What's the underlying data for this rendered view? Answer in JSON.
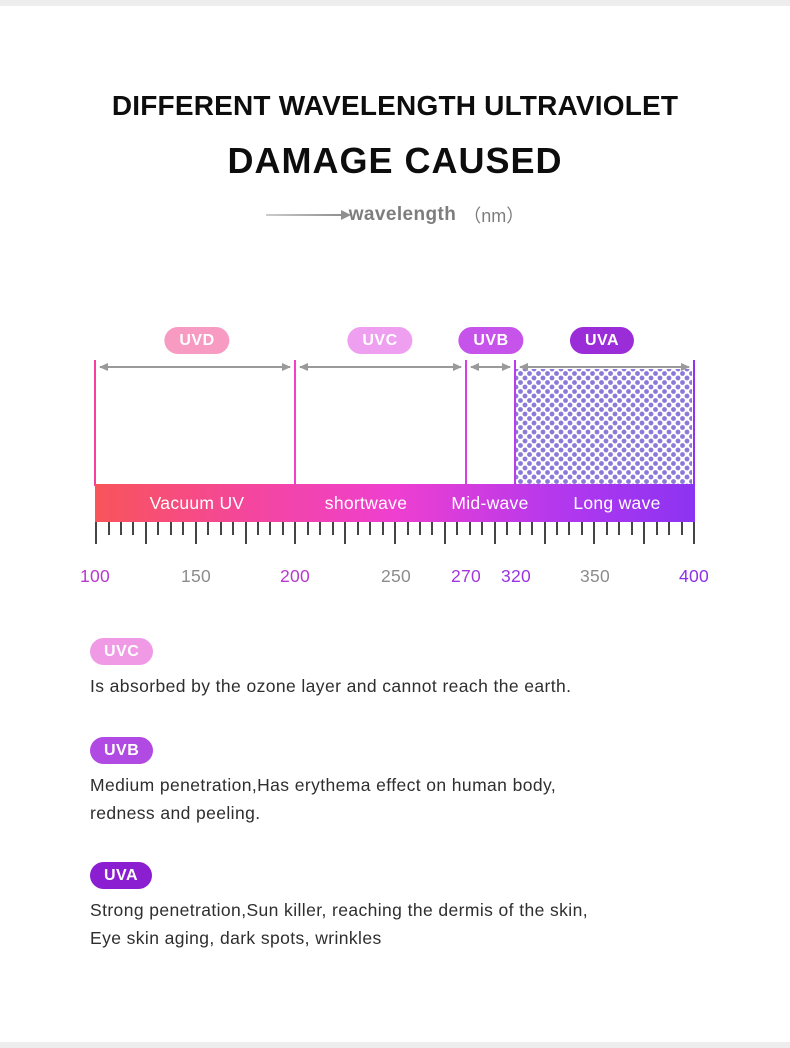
{
  "header": {
    "title": "DIFFERENT WAVELENGTH ULTRAVIOLET",
    "subtitle": "DAMAGE CAUSED",
    "axis_label": "wavelength",
    "axis_unit": "（nm）"
  },
  "bands": [
    {
      "label": "UVD",
      "color": "#f79bc3"
    },
    {
      "label": "UVC",
      "color": "#ef9ff0"
    },
    {
      "label": "UVB",
      "color": "#c653ea"
    },
    {
      "label": "UVA",
      "color": "#9b2dd8"
    }
  ],
  "spectrum": {
    "segments": [
      "Vacuum UV",
      "shortwave",
      "Mid-wave",
      "Long wave"
    ],
    "gradient": [
      "#f8545a",
      "#ee3fd0",
      "#8c33f2"
    ]
  },
  "scale": [
    {
      "value": "100",
      "color": "#b739cf"
    },
    {
      "value": "150",
      "color": "#8c8c8c"
    },
    {
      "value": "200",
      "color": "#b739cf"
    },
    {
      "value": "250",
      "color": "#8c8c8c"
    },
    {
      "value": "270",
      "color": "#a337dd"
    },
    {
      "value": "320",
      "color": "#9934e2"
    },
    {
      "value": "350",
      "color": "#8c8c8c"
    },
    {
      "value": "400",
      "color": "#8e30e8"
    }
  ],
  "legend": [
    {
      "badge": "UVC",
      "color": "#f09ae6",
      "text": "Is absorbed by the ozone layer and cannot reach the earth."
    },
    {
      "badge": "UVB",
      "color": "#b14ae2",
      "text": "Medium penetration,Has erythema effect on human body,\nredness and peeling."
    },
    {
      "badge": "UVA",
      "color": "#8c1ed2",
      "text": "Strong penetration,Sun killer, reaching the dermis of the skin,\nEye skin aging, dark spots, wrinkles"
    }
  ],
  "chart_data": {
    "type": "diagram",
    "title": "Different wavelength ultraviolet damage caused",
    "axis": {
      "label": "wavelength (nm)",
      "min": 100,
      "max": 400,
      "tick_labels": [
        100,
        150,
        200,
        250,
        270,
        320,
        350,
        400
      ]
    },
    "bands": [
      {
        "name": "UVD",
        "range_nm": [
          100,
          200
        ],
        "segment_label": "Vacuum UV",
        "color": "#f79bc3"
      },
      {
        "name": "UVC",
        "range_nm": [
          200,
          270
        ],
        "segment_label": "shortwave",
        "color": "#ef9ff0"
      },
      {
        "name": "UVB",
        "range_nm": [
          270,
          320
        ],
        "segment_label": "Mid-wave",
        "color": "#c653ea"
      },
      {
        "name": "UVA",
        "range_nm": [
          320,
          400
        ],
        "segment_label": "Long wave",
        "color": "#9b2dd8",
        "highlighted": true
      }
    ]
  }
}
